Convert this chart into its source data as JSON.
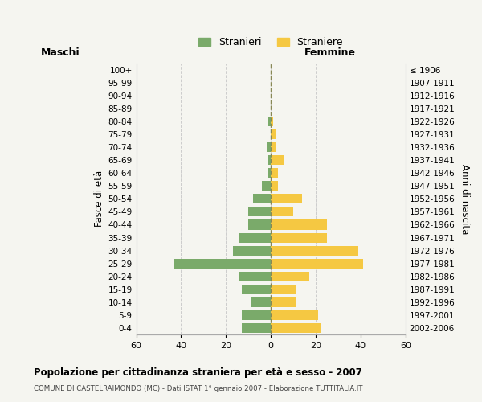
{
  "age_groups": [
    "0-4",
    "5-9",
    "10-14",
    "15-19",
    "20-24",
    "25-29",
    "30-34",
    "35-39",
    "40-44",
    "45-49",
    "50-54",
    "55-59",
    "60-64",
    "65-69",
    "70-74",
    "75-79",
    "80-84",
    "85-89",
    "90-94",
    "95-99",
    "100+"
  ],
  "birth_years": [
    "2002-2006",
    "1997-2001",
    "1992-1996",
    "1987-1991",
    "1982-1986",
    "1977-1981",
    "1972-1976",
    "1967-1971",
    "1962-1966",
    "1957-1961",
    "1952-1956",
    "1947-1951",
    "1942-1946",
    "1937-1941",
    "1932-1936",
    "1927-1931",
    "1922-1926",
    "1917-1921",
    "1912-1916",
    "1907-1911",
    "≤ 1906"
  ],
  "maschi": [
    13,
    13,
    9,
    13,
    14,
    43,
    17,
    14,
    10,
    10,
    8,
    4,
    1,
    1,
    2,
    0,
    1,
    0,
    0,
    0,
    0
  ],
  "femmine": [
    22,
    21,
    11,
    11,
    17,
    41,
    39,
    25,
    25,
    10,
    14,
    3,
    3,
    6,
    2,
    2,
    1,
    0,
    0,
    0,
    0
  ],
  "male_color": "#7aaa6a",
  "female_color": "#f5c842",
  "background_color": "#f5f5f0",
  "grid_color": "#cccccc",
  "center_line_color": "#888855",
  "title": "Popolazione per cittadinanza straniera per età e sesso - 2007",
  "subtitle": "COMUNE DI CASTELRAIMONDO (MC) - Dati ISTAT 1° gennaio 2007 - Elaborazione TUTTITALIA.IT",
  "xlabel_left": "Maschi",
  "xlabel_right": "Femmine",
  "ylabel_left": "Fasce di età",
  "ylabel_right": "Anni di nascita",
  "xlim": 60,
  "xtick_step": 20,
  "legend_male": "Stranieri",
  "legend_female": "Straniere",
  "bar_height": 0.75
}
